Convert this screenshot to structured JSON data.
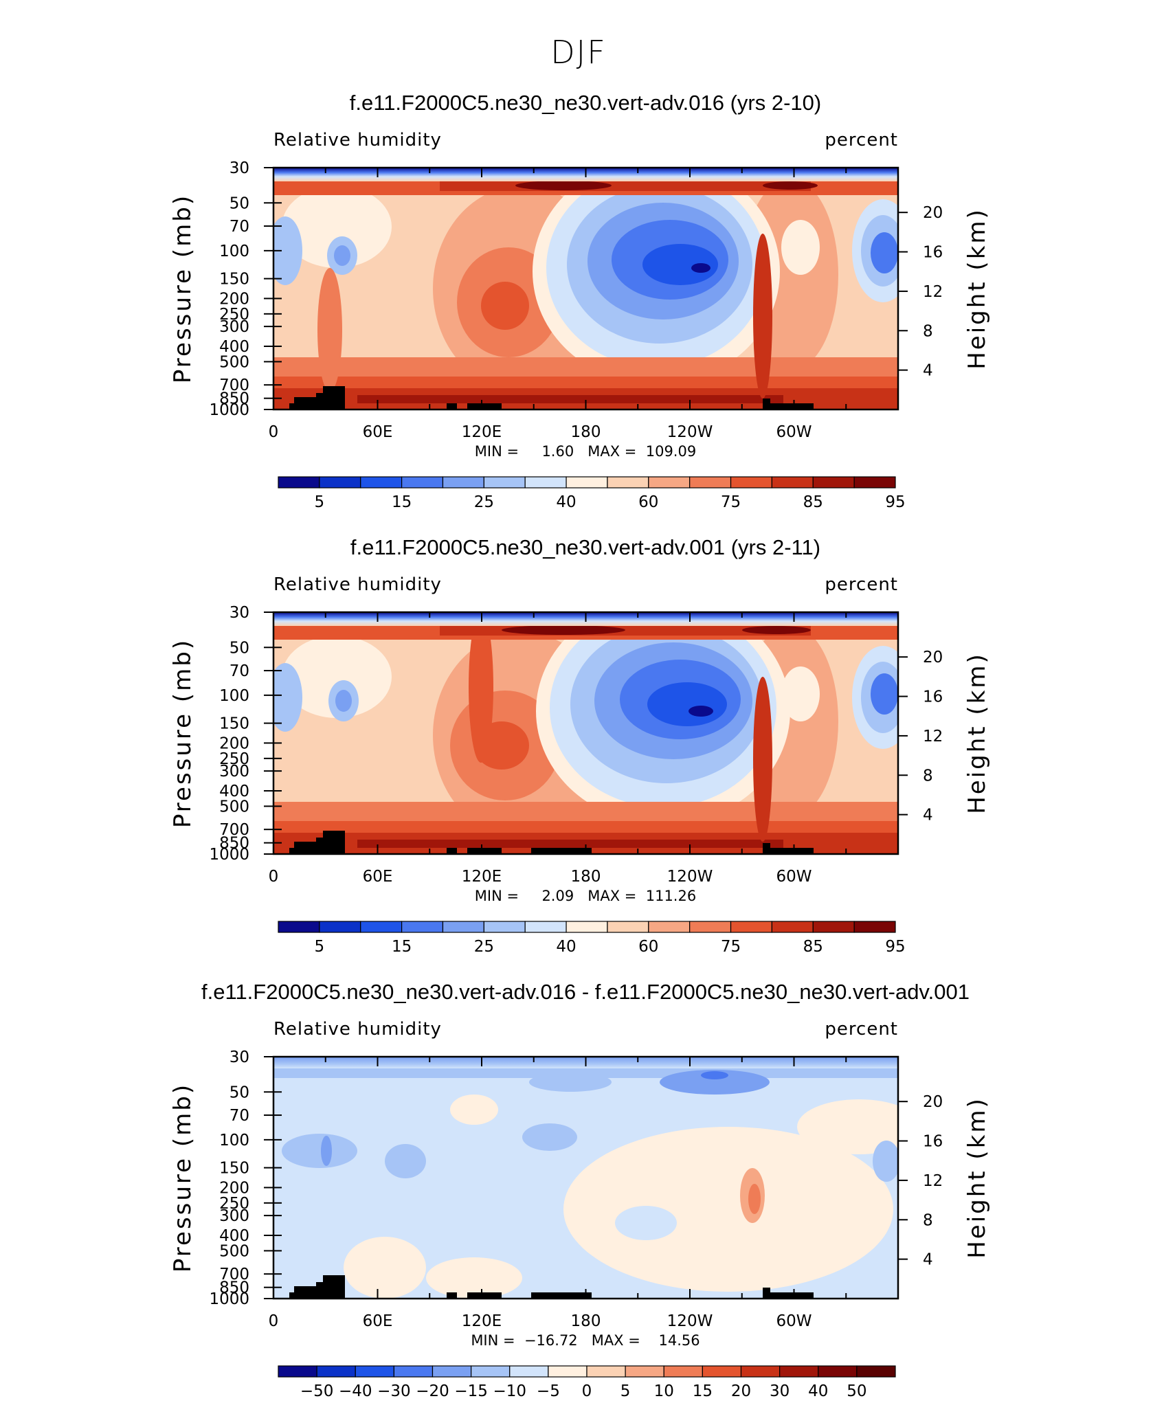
{
  "page_title": "DJF",
  "chart_data": [
    {
      "type": "heatmap",
      "title": "f.e11.F2000C5.ne30_ne30.vert-adv.016 (yrs 2-10)",
      "left_label": "Relative humidity",
      "right_label": "percent",
      "ylabel": "Pressure (mb)",
      "ylabel_right": "Height (km)",
      "x_ticks": [
        "0",
        "60E",
        "120E",
        "180",
        "120W",
        "60W"
      ],
      "y_ticks": [
        "30",
        "50",
        "70",
        "100",
        "150",
        "200",
        "250",
        "300",
        "400",
        "500",
        "700",
        "850",
        "1000"
      ],
      "y_right_ticks": [
        "20",
        "16",
        "12",
        "8",
        "4"
      ],
      "min": 1.6,
      "max": 109.09,
      "minmax_text": "MIN =     1.60   MAX =  109.09",
      "colorbar_labels": [
        "5",
        "15",
        "25",
        "40",
        "60",
        "75",
        "85",
        "95"
      ],
      "colorbar_colors": [
        "#0a0a8c",
        "#0b32c8",
        "#1e54e8",
        "#4a78f0",
        "#7aa0f2",
        "#a6c4f6",
        "#d2e4fb",
        "#fff0e0",
        "#fbd2b4",
        "#f6a784",
        "#ef7c56",
        "#e4542e",
        "#c83217",
        "#a0160a",
        "#7a0505"
      ]
    },
    {
      "type": "heatmap",
      "title": "f.e11.F2000C5.ne30_ne30.vert-adv.001 (yrs 2-11)",
      "left_label": "Relative humidity",
      "right_label": "percent",
      "ylabel": "Pressure (mb)",
      "ylabel_right": "Height (km)",
      "x_ticks": [
        "0",
        "60E",
        "120E",
        "180",
        "120W",
        "60W"
      ],
      "y_ticks": [
        "30",
        "50",
        "70",
        "100",
        "150",
        "200",
        "250",
        "300",
        "400",
        "500",
        "700",
        "850",
        "1000"
      ],
      "y_right_ticks": [
        "20",
        "16",
        "12",
        "8",
        "4"
      ],
      "min": 2.09,
      "max": 111.26,
      "minmax_text": "MIN =     2.09   MAX =  111.26",
      "colorbar_labels": [
        "5",
        "15",
        "25",
        "40",
        "60",
        "75",
        "85",
        "95"
      ],
      "colorbar_colors": [
        "#0a0a8c",
        "#0b32c8",
        "#1e54e8",
        "#4a78f0",
        "#7aa0f2",
        "#a6c4f6",
        "#d2e4fb",
        "#fff0e0",
        "#fbd2b4",
        "#f6a784",
        "#ef7c56",
        "#e4542e",
        "#c83217",
        "#a0160a",
        "#7a0505"
      ]
    },
    {
      "type": "heatmap",
      "title": "f.e11.F2000C5.ne30_ne30.vert-adv.016 - f.e11.F2000C5.ne30_ne30.vert-adv.001",
      "left_label": "Relative humidity",
      "right_label": "percent",
      "ylabel": "Pressure (mb)",
      "ylabel_right": "Height (km)",
      "x_ticks": [
        "0",
        "60E",
        "120E",
        "180",
        "120W",
        "60W"
      ],
      "y_ticks": [
        "30",
        "50",
        "70",
        "100",
        "150",
        "200",
        "250",
        "300",
        "400",
        "500",
        "700",
        "850",
        "1000"
      ],
      "y_right_ticks": [
        "20",
        "16",
        "12",
        "8",
        "4"
      ],
      "min": -16.72,
      "max": 14.56,
      "minmax_text": "MIN =  −16.72   MAX =    14.56",
      "colorbar_labels": [
        "−50",
        "−40",
        "−30",
        "−20",
        "−15",
        "−10",
        "−5",
        "0",
        "5",
        "10",
        "15",
        "20",
        "30",
        "40",
        "50"
      ],
      "colorbar_colors": [
        "#0a0a8c",
        "#0b32c8",
        "#1e54e8",
        "#4a78f0",
        "#7aa0f2",
        "#a6c4f6",
        "#d2e4fb",
        "#fff0e0",
        "#fbd2b4",
        "#f6a784",
        "#ef7c56",
        "#e4542e",
        "#c83217",
        "#a0160a",
        "#7a0505",
        "#5a0202"
      ]
    }
  ]
}
